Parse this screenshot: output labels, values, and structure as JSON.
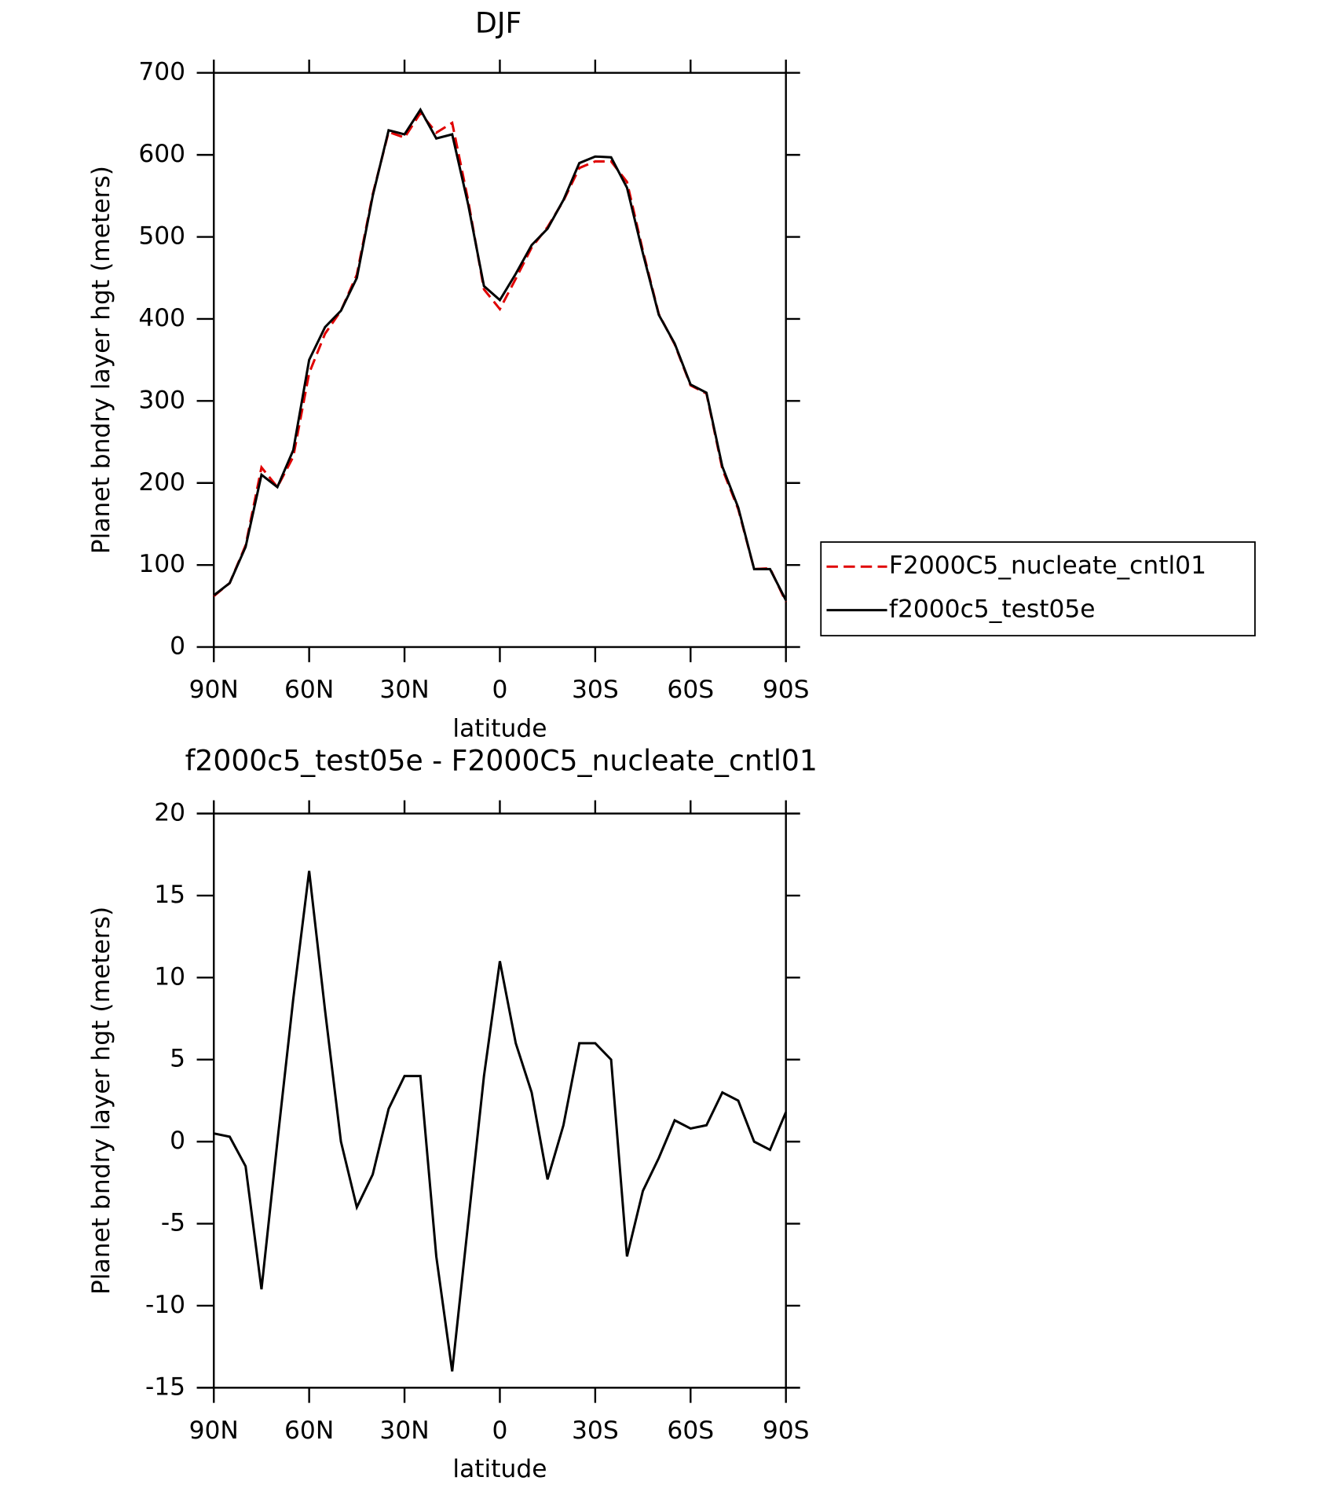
{
  "chart_data": [
    {
      "type": "line",
      "title": "DJF",
      "x_label": "latitude",
      "y_label": "Planet bndry layer hgt (meters)",
      "x": [
        90,
        85,
        80,
        75,
        70,
        65,
        60,
        55,
        50,
        45,
        40,
        35,
        30,
        25,
        20,
        15,
        10,
        5,
        0,
        -5,
        -10,
        -15,
        -20,
        -25,
        -30,
        -35,
        -40,
        -45,
        -50,
        -55,
        -60,
        -65,
        -70,
        -75,
        -80,
        -85,
        -90
      ],
      "series": [
        {
          "name": "F2000C5_nucleate_cntl01",
          "color": "#e00000",
          "dash": true,
          "values": [
            62,
            78,
            124,
            219,
            195,
            232,
            334,
            382,
            410,
            454,
            552,
            628,
            621,
            651,
            627,
            639,
            545,
            436,
            412,
            449,
            487,
            512,
            544,
            584,
            592,
            592,
            567,
            483,
            406,
            369,
            319,
            309,
            217,
            168,
            95,
            96,
            55
          ]
        },
        {
          "name": "f2000c5_test05e",
          "color": "#000000",
          "dash": false,
          "values": [
            63,
            78,
            122,
            210,
            195,
            240,
            350,
            390,
            410,
            450,
            550,
            630,
            625,
            655,
            620,
            625,
            540,
            440,
            423,
            455,
            490,
            510,
            545,
            590,
            598,
            597,
            560,
            480,
            405,
            370,
            320,
            310,
            220,
            170,
            95,
            95,
            57
          ]
        }
      ],
      "xlim": [
        90,
        -90
      ],
      "xticks": [
        {
          "value": 90,
          "label": "90N"
        },
        {
          "value": 60,
          "label": "60N"
        },
        {
          "value": 30,
          "label": "30N"
        },
        0,
        {
          "value": -30,
          "label": "30S"
        },
        {
          "value": -60,
          "label": "60S"
        },
        {
          "value": -90,
          "label": "90S"
        }
      ],
      "ylim": [
        0,
        700
      ],
      "yticks": [
        0,
        100,
        200,
        300,
        400,
        500,
        600,
        700
      ],
      "legend": "right"
    },
    {
      "type": "line",
      "title": "f2000c5_test05e - F2000C5_nucleate_cntl01",
      "x_label": "latitude",
      "y_label": "Planet bndry layer hgt (meters)",
      "x": [
        90,
        85,
        80,
        75,
        70,
        65,
        60,
        55,
        50,
        45,
        40,
        35,
        30,
        25,
        20,
        15,
        10,
        5,
        0,
        -5,
        -10,
        -15,
        -20,
        -25,
        -30,
        -35,
        -40,
        -45,
        -50,
        -55,
        -60,
        -65,
        -70,
        -75,
        -80,
        -85,
        -90
      ],
      "series": [
        {
          "name": "difference",
          "color": "#000000",
          "dash": false,
          "values": [
            0.5,
            0.3,
            -1.5,
            -9,
            0,
            8.7,
            16.5,
            8,
            0,
            -4,
            -2,
            2,
            4,
            4,
            -7,
            -14,
            -5,
            4,
            11,
            6,
            3,
            -2.3,
            1,
            6,
            6,
            5,
            -7,
            -3,
            -1,
            1.3,
            0.8,
            1,
            3,
            2.5,
            0,
            -0.5,
            1.8
          ]
        }
      ],
      "xlim": [
        90,
        -90
      ],
      "xticks": [
        {
          "value": 90,
          "label": "90N"
        },
        {
          "value": 60,
          "label": "60N"
        },
        {
          "value": 30,
          "label": "30N"
        },
        0,
        {
          "value": -30,
          "label": "30S"
        },
        {
          "value": -60,
          "label": "60S"
        },
        {
          "value": -90,
          "label": "90S"
        }
      ],
      "ylim": [
        -15,
        20
      ],
      "yticks": [
        -15,
        -10,
        -5,
        0,
        5,
        10,
        15,
        20
      ]
    }
  ]
}
